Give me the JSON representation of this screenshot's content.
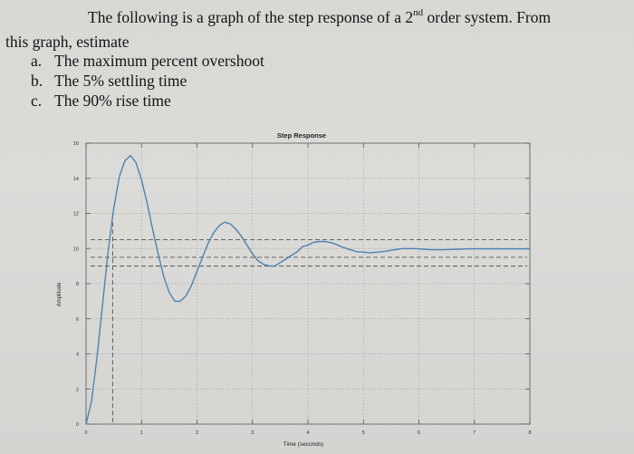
{
  "question": {
    "line1_before": "The following is a graph of the step response of a 2",
    "line1_sup": "nd",
    "line1_after": " order system. From",
    "line2": "this graph, estimate",
    "items": [
      {
        "mark": "a.",
        "text": "The maximum percent overshoot"
      },
      {
        "mark": "b.",
        "text": "The 5% settling time"
      },
      {
        "mark": "c.",
        "text": "The 90% rise time"
      }
    ]
  },
  "chart_data": {
    "type": "line",
    "title": "Step Response",
    "xlabel": "Time (seconds)",
    "ylabel": "Amplitude",
    "xlim": [
      0,
      8
    ],
    "ylim": [
      0,
      16
    ],
    "xticks": [
      0,
      1,
      2,
      3,
      4,
      5,
      6,
      7,
      8
    ],
    "yticks": [
      0,
      2,
      4,
      6,
      8,
      10,
      12,
      14,
      16
    ],
    "grid": true,
    "legend": "none",
    "line_color": "#4d82b1",
    "series": [
      {
        "x": [
          0,
          0.1,
          0.2,
          0.3,
          0.4,
          0.5,
          0.6,
          0.7,
          0.8,
          0.9,
          1.0,
          1.1,
          1.2,
          1.3,
          1.4,
          1.5,
          1.6,
          1.7,
          1.8,
          1.9,
          2.0,
          2.1,
          2.2,
          2.3,
          2.4,
          2.5,
          2.6,
          2.7,
          2.8,
          2.9,
          3.0,
          3.1,
          3.2,
          3.3,
          3.4,
          3.5,
          3.6,
          3.7,
          3.8,
          3.9,
          4.0,
          4.1,
          4.2,
          4.3,
          4.4,
          4.5,
          4.6,
          4.7,
          4.8,
          4.9,
          5.0,
          5.1,
          5.2,
          5.3,
          5.4,
          5.5,
          5.6,
          5.7,
          5.8,
          5.9,
          6.0,
          6.1,
          6.2,
          6.3,
          6.4,
          6.5,
          6.6,
          6.7,
          6.8,
          6.9,
          7.0,
          7.1,
          7.2,
          7.3,
          7.4,
          7.5,
          7.6,
          7.7,
          7.8,
          7.9,
          8.0
        ],
        "values": [
          0.0,
          1.3,
          3.9,
          6.9,
          9.9,
          12.3,
          14.1,
          15.0,
          15.3,
          14.9,
          13.9,
          12.6,
          11.1,
          9.7,
          8.4,
          7.5,
          7.0,
          7.0,
          7.3,
          7.9,
          8.7,
          9.5,
          10.3,
          10.9,
          11.3,
          11.5,
          11.4,
          11.1,
          10.7,
          10.2,
          9.7,
          9.3,
          9.1,
          9.0,
          9.0,
          9.2,
          9.4,
          9.6,
          9.8,
          10.1,
          10.2,
          10.35,
          10.4,
          10.4,
          10.35,
          10.25,
          10.1,
          10.0,
          9.9,
          9.8,
          9.8,
          9.75,
          9.78,
          9.8,
          9.85,
          9.9,
          9.95,
          10.0,
          10.0,
          10.0,
          9.98,
          9.96,
          9.94,
          9.93,
          9.93,
          9.94,
          9.95,
          9.96,
          9.97,
          9.98,
          9.98,
          9.98,
          9.98,
          9.98,
          9.98,
          9.98,
          9.98,
          9.98,
          9.98,
          9.98,
          9.98
        ]
      }
    ],
    "reference_lines_y": [
      10.5,
      9.5,
      9.0
    ]
  }
}
